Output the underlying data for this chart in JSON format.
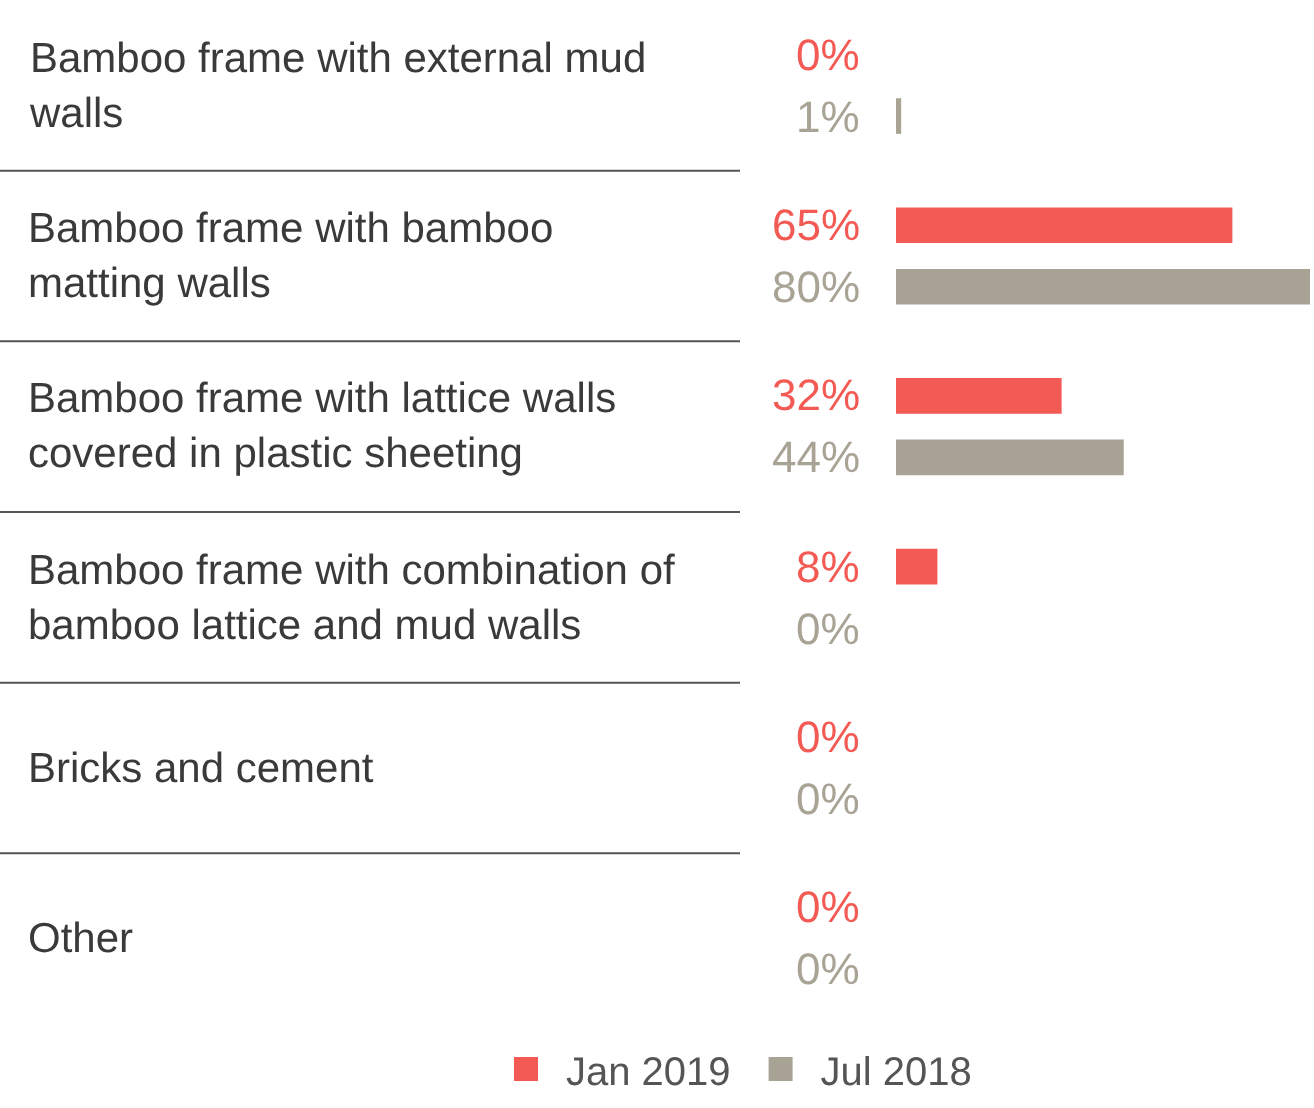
{
  "chart_data": {
    "type": "bar",
    "orientation": "horizontal",
    "legend": "bottom",
    "categories": [
      "Bamboo frame with external mud walls",
      "Bamboo frame with bamboo matting walls",
      "Bamboo frame with lattice walls covered in plastic sheeting",
      "Bamboo frame with combination of bamboo lattice and mud walls",
      "Bricks and cement",
      "Other"
    ],
    "series": [
      {
        "name": "Jan 2019",
        "color": "#f35a54",
        "values": [
          0,
          65,
          32,
          8,
          0,
          0
        ],
        "value_labels": [
          "0%",
          "65%",
          "32%",
          "8%",
          "0%",
          "0%"
        ]
      },
      {
        "name": "Jul 2018",
        "color": "#a8a394",
        "values": [
          1,
          80,
          44,
          0,
          0,
          0
        ],
        "value_labels": [
          "1%",
          "80%",
          "44%",
          "0%",
          "0%",
          "0%"
        ]
      }
    ]
  }
}
